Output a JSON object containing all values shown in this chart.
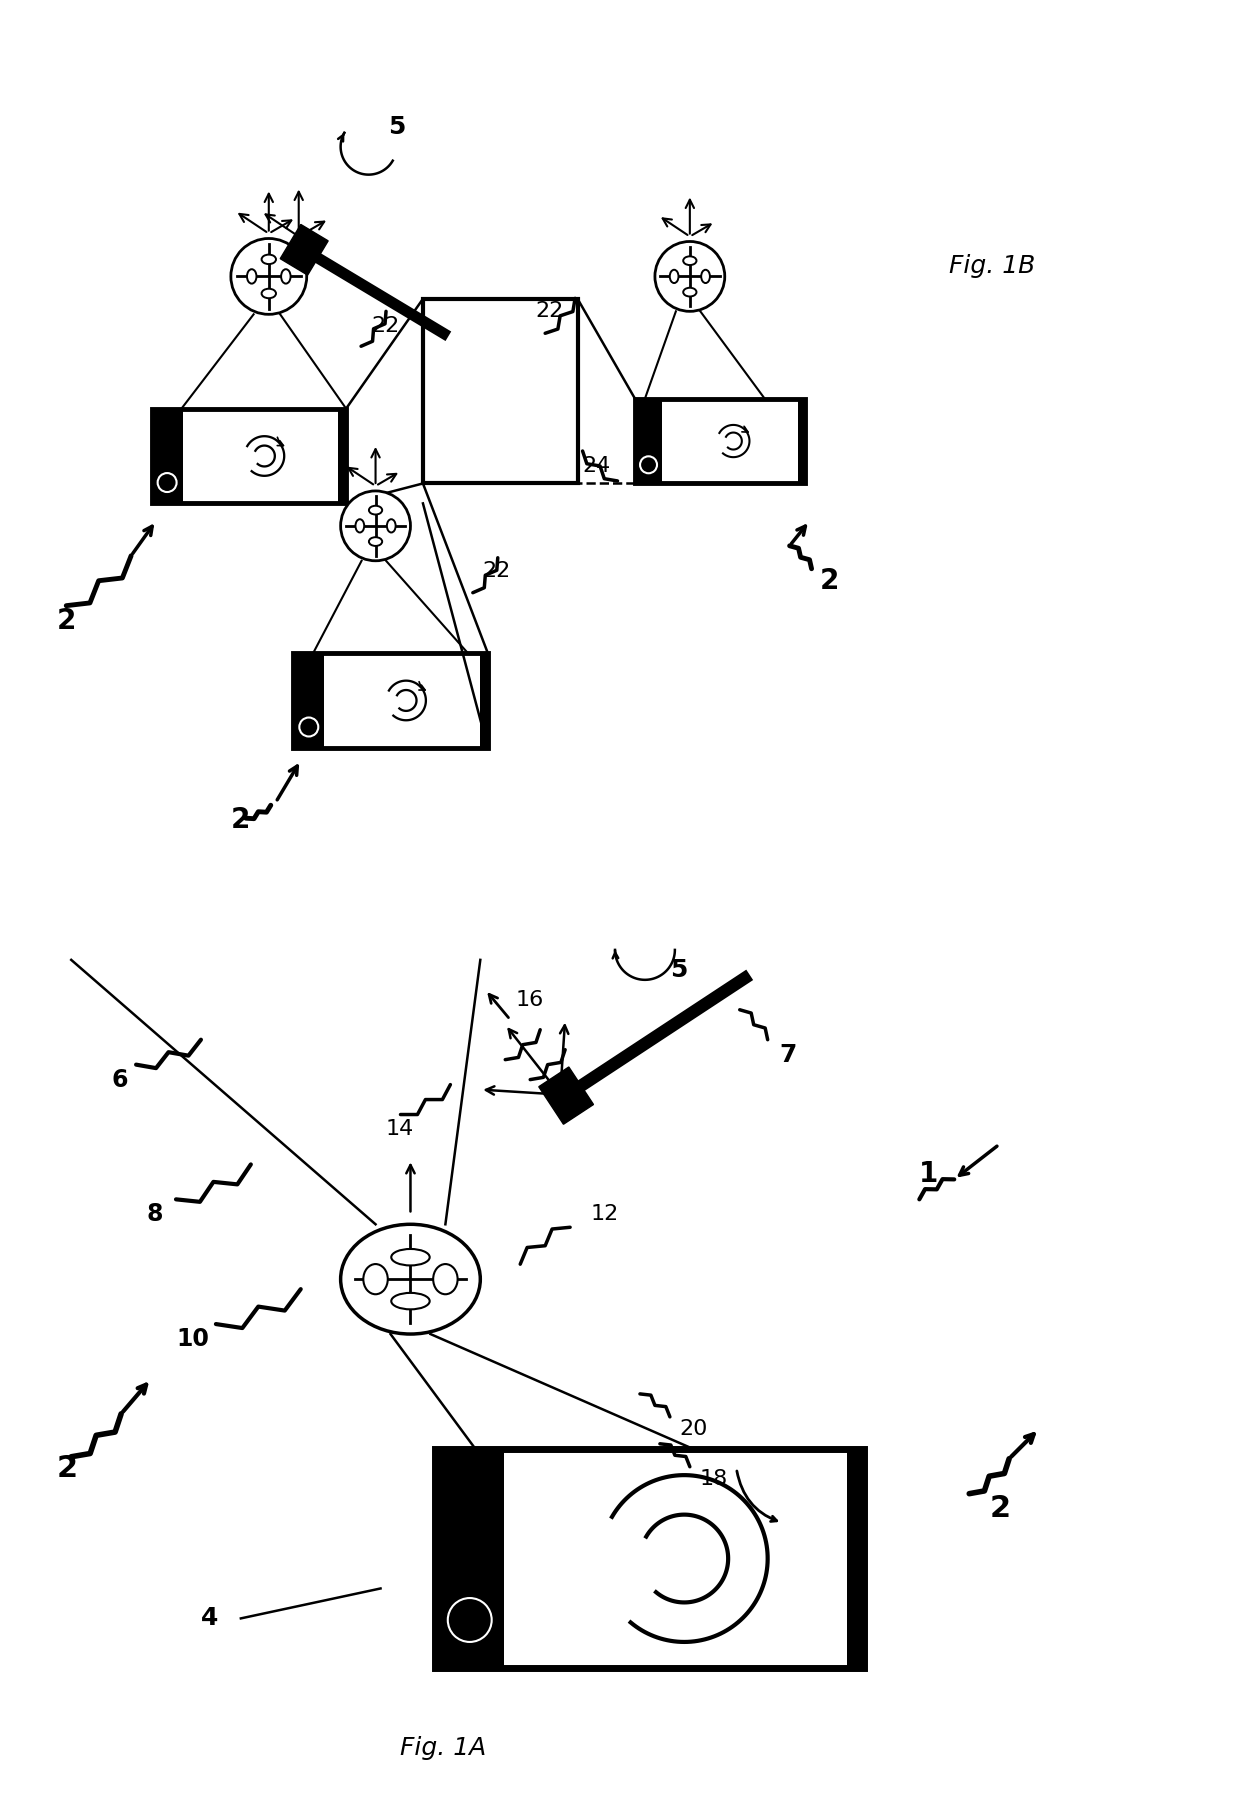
{
  "background_color": "#ffffff",
  "fig_width": 12.4,
  "fig_height": 18.09,
  "black": "#000000",
  "fig1A_label": "Fig. 1A",
  "fig1B_label": "Fig. 1B"
}
